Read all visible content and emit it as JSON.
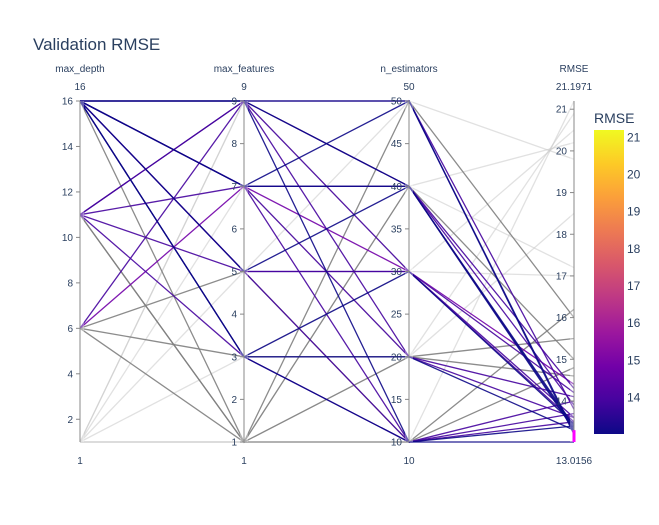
{
  "chart_data": {
    "type": "parallel_coordinates",
    "title": "Validation RMSE",
    "dimensions": [
      {
        "name": "max_depth",
        "range": [
          1,
          16
        ],
        "range_labels": [
          "1",
          "16"
        ],
        "ticks": [
          2,
          4,
          6,
          8,
          10,
          12,
          14,
          16
        ]
      },
      {
        "name": "max_features",
        "range": [
          1,
          9
        ],
        "range_labels": [
          "1",
          "9"
        ],
        "ticks": [
          1,
          2,
          3,
          4,
          5,
          6,
          7,
          8,
          9
        ]
      },
      {
        "name": "n_estimators",
        "range": [
          10,
          50
        ],
        "range_labels": [
          "10",
          "50"
        ],
        "ticks": [
          10,
          15,
          20,
          25,
          30,
          35,
          40,
          45,
          50
        ]
      },
      {
        "name": "RMSE",
        "range": [
          13.0156,
          21.1971
        ],
        "range_labels": [
          "13.0156",
          "21.1971"
        ],
        "ticks": [
          14,
          15,
          16,
          17,
          18,
          19,
          20,
          21
        ]
      }
    ],
    "lines": [
      [
        16,
        9,
        50,
        13.2
      ],
      [
        16,
        7,
        40,
        13.4
      ],
      [
        16,
        5,
        30,
        13.5
      ],
      [
        16,
        3,
        20,
        13.3
      ],
      [
        16,
        9,
        30,
        13.6
      ],
      [
        16,
        7,
        10,
        13.7
      ],
      [
        16,
        3,
        10,
        13.4
      ],
      [
        16,
        9,
        40,
        13.3
      ],
      [
        16,
        5,
        10,
        13.5
      ],
      [
        16,
        7,
        20,
        13.6
      ],
      [
        11,
        9,
        50,
        13.8
      ],
      [
        11,
        5,
        30,
        14.2
      ],
      [
        11,
        3,
        10,
        14.0
      ],
      [
        11,
        7,
        40,
        13.9
      ],
      [
        11,
        1,
        20,
        15.5
      ],
      [
        11,
        9,
        20,
        14.1
      ],
      [
        6,
        9,
        40,
        14.3
      ],
      [
        6,
        3,
        20,
        14.6
      ],
      [
        6,
        7,
        30,
        14.4
      ],
      [
        6,
        1,
        50,
        16.0
      ],
      [
        6,
        5,
        10,
        14.8
      ],
      [
        1,
        1,
        10,
        21.1971
      ],
      [
        1,
        3,
        30,
        20.5
      ],
      [
        1,
        5,
        50,
        19.8
      ],
      [
        1,
        7,
        20,
        20.9
      ],
      [
        1,
        9,
        40,
        20.2
      ],
      [
        1,
        1,
        40,
        17.2
      ],
      [
        1,
        9,
        30,
        17.0
      ],
      [
        1,
        1,
        20,
        18.5
      ],
      [
        16,
        1,
        40,
        15.0
      ],
      [
        11,
        1,
        10,
        16.2
      ],
      [
        16,
        9,
        10,
        13.0156
      ],
      [
        16,
        7,
        50,
        13.25
      ],
      [
        16,
        5,
        40,
        13.35
      ],
      [
        16,
        3,
        30,
        13.45
      ]
    ],
    "colorbar": {
      "title": "RMSE",
      "range": [
        13.0156,
        21.1971
      ],
      "ticks": [
        14,
        15,
        16,
        17,
        18,
        19,
        20,
        21
      ],
      "colorscale": [
        "#0d0887",
        "#46039f",
        "#7201a8",
        "#9c179e",
        "#bd3786",
        "#d8576b",
        "#ed7953",
        "#fb9f3a",
        "#fdca26",
        "#f0f921"
      ]
    }
  }
}
